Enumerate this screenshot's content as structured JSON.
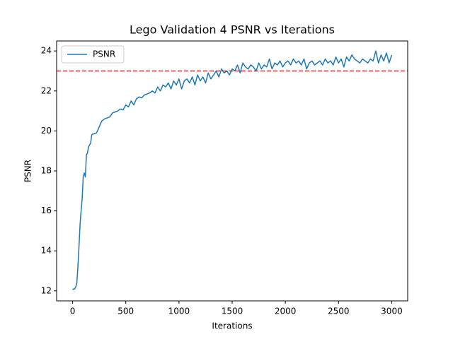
{
  "chart_data": {
    "type": "line",
    "title": "Lego Validation 4 PSNR vs Iterations",
    "x_label": "Iterations",
    "y_label": "PSNR",
    "x": [
      0,
      10,
      20,
      30,
      40,
      50,
      60,
      70,
      80,
      90,
      100,
      110,
      120,
      130,
      140,
      150,
      160,
      170,
      180,
      190,
      200,
      225,
      250,
      275,
      300,
      325,
      350,
      375,
      400,
      425,
      450,
      475,
      500,
      525,
      550,
      575,
      600,
      625,
      650,
      675,
      700,
      725,
      750,
      775,
      800,
      825,
      850,
      875,
      900,
      925,
      950,
      975,
      1000,
      1025,
      1050,
      1075,
      1100,
      1125,
      1150,
      1175,
      1200,
      1225,
      1250,
      1275,
      1300,
      1325,
      1350,
      1375,
      1400,
      1425,
      1450,
      1475,
      1500,
      1525,
      1550,
      1575,
      1600,
      1625,
      1650,
      1675,
      1700,
      1725,
      1750,
      1775,
      1800,
      1825,
      1850,
      1875,
      1900,
      1925,
      1950,
      1975,
      2000,
      2025,
      2050,
      2075,
      2100,
      2125,
      2150,
      2175,
      2200,
      2225,
      2250,
      2275,
      2300,
      2325,
      2350,
      2375,
      2400,
      2425,
      2450,
      2475,
      2500,
      2525,
      2550,
      2575,
      2600,
      2625,
      2650,
      2675,
      2700,
      2725,
      2750,
      2775,
      2800,
      2825,
      2850,
      2875,
      2900,
      2925,
      2950,
      2975,
      3000
    ],
    "series": [
      {
        "name": "PSNR",
        "color": "#1f77b4",
        "values": [
          12.05,
          12.1,
          12.1,
          12.2,
          12.4,
          13.2,
          14.2,
          15.3,
          16.0,
          16.6,
          17.7,
          17.9,
          17.7,
          18.8,
          18.9,
          19.2,
          19.3,
          19.4,
          19.8,
          19.85,
          19.85,
          19.9,
          20.2,
          20.5,
          20.6,
          20.65,
          20.7,
          20.9,
          20.95,
          21.0,
          21.1,
          21.05,
          21.3,
          21.2,
          21.5,
          21.3,
          21.6,
          21.7,
          21.65,
          21.8,
          21.85,
          21.9,
          22.0,
          21.9,
          22.2,
          22.0,
          22.3,
          22.2,
          22.4,
          22.1,
          22.5,
          22.3,
          22.6,
          22.1,
          22.5,
          22.6,
          22.4,
          22.7,
          22.3,
          22.8,
          22.5,
          22.7,
          22.4,
          22.9,
          22.6,
          22.8,
          23.0,
          22.7,
          23.1,
          22.9,
          23.0,
          22.8,
          23.1,
          23.0,
          23.3,
          22.9,
          23.4,
          23.2,
          23.1,
          23.3,
          23.2,
          23.0,
          23.4,
          23.1,
          23.3,
          23.2,
          23.6,
          23.1,
          23.4,
          23.3,
          23.5,
          23.2,
          23.4,
          23.5,
          23.3,
          23.6,
          23.4,
          23.5,
          23.3,
          23.6,
          23.1,
          23.4,
          23.5,
          23.3,
          23.4,
          23.5,
          23.3,
          23.6,
          23.4,
          23.5,
          23.3,
          23.7,
          23.4,
          23.6,
          23.2,
          23.7,
          23.5,
          23.8,
          23.6,
          23.5,
          23.4,
          23.6,
          23.5,
          23.4,
          23.6,
          23.5,
          24.0,
          23.4,
          23.8,
          23.5,
          23.9,
          23.4,
          23.8
        ]
      }
    ],
    "hline": 23,
    "hline_color": "#d62728",
    "xlim": [
      -150,
      3150
    ],
    "xticks": [
      0,
      500,
      1000,
      1500,
      2000,
      2500,
      3000
    ],
    "ylim": [
      11.5,
      24.5
    ],
    "yticks": [
      12,
      14,
      16,
      18,
      20,
      22,
      24
    ],
    "legend": "upper left",
    "grid": false
  }
}
